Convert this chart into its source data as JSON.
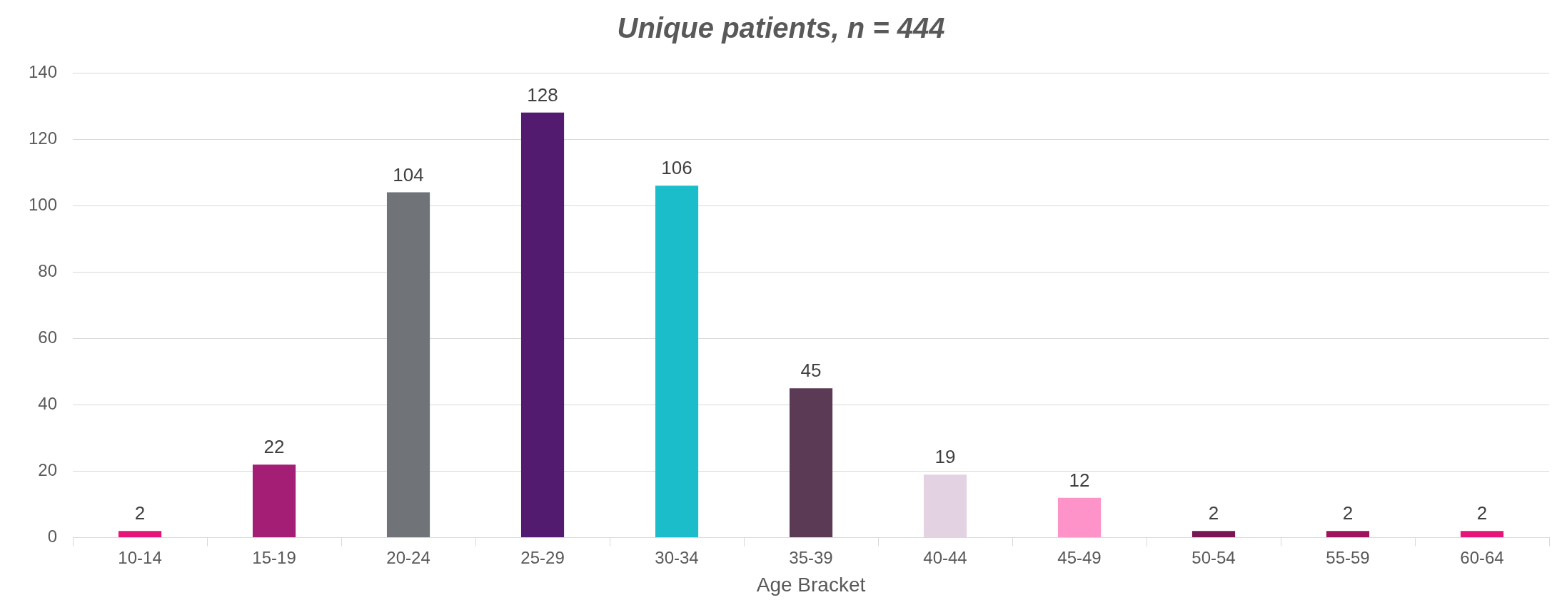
{
  "chart_data": {
    "type": "bar",
    "title": "Unique patients, n = 444",
    "xlabel": "Age Bracket",
    "categories": [
      "10-14",
      "15-19",
      "20-24",
      "25-29",
      "30-34",
      "35-39",
      "40-44",
      "45-49",
      "50-54",
      "55-59",
      "60-64"
    ],
    "values": [
      2,
      22,
      104,
      128,
      106,
      45,
      19,
      12,
      2,
      2,
      2
    ],
    "colors": [
      "#e6157a",
      "#a51e76",
      "#707478",
      "#521b6f",
      "#1bbdca",
      "#5b3a56",
      "#e3d3e2",
      "#fd93c8",
      "#7a1654",
      "#a0125e",
      "#e6157a"
    ],
    "ylim": [
      0,
      140
    ],
    "yticks": [
      0,
      20,
      40,
      60,
      80,
      100,
      120,
      140
    ],
    "grid": "y",
    "data_labels": true,
    "legend": false
  }
}
